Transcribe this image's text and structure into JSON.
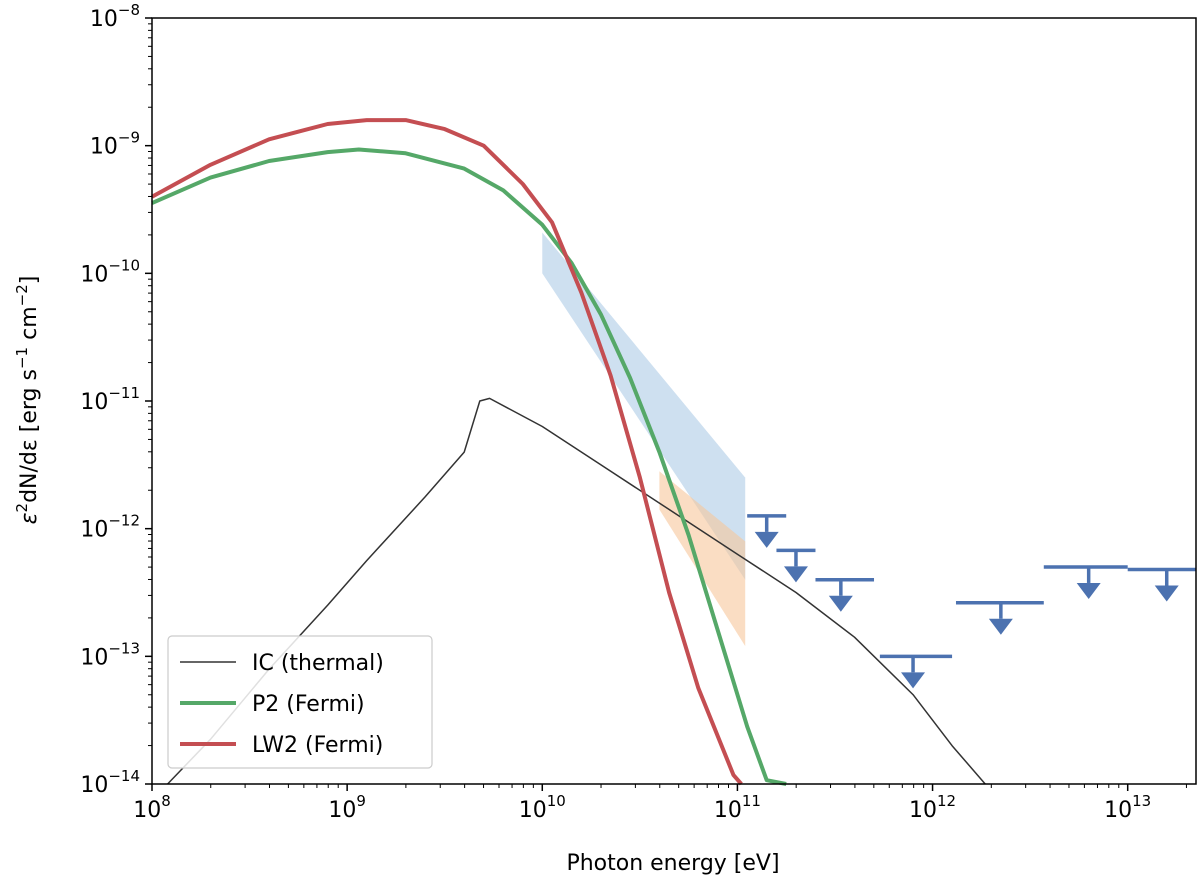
{
  "chart_data": {
    "type": "line",
    "title": "",
    "xlabel": "Photon energy [eV]",
    "ylabel": {
      "prefix": "ε",
      "sup1": "2",
      "mid": "dN/dε [erg s",
      "sup2": "−1",
      "mid2": " cm",
      "sup3": "−2",
      "suffix": "]"
    },
    "xscale": "log",
    "yscale": "log",
    "xlim_log10": [
      8,
      13.35
    ],
    "ylim_log10": [
      -14,
      -8
    ],
    "x_ticks": [
      {
        "base": "10",
        "exp": "8",
        "log10": 8
      },
      {
        "base": "10",
        "exp": "9",
        "log10": 9
      },
      {
        "base": "10",
        "exp": "10",
        "log10": 10
      },
      {
        "base": "10",
        "exp": "11",
        "log10": 11
      },
      {
        "base": "10",
        "exp": "12",
        "log10": 12
      },
      {
        "base": "10",
        "exp": "13",
        "log10": 13
      }
    ],
    "y_ticks": [
      {
        "base": "10",
        "exp": "−14",
        "log10": -14
      },
      {
        "base": "10",
        "exp": "−13",
        "log10": -13
      },
      {
        "base": "10",
        "exp": "−12",
        "log10": -12
      },
      {
        "base": "10",
        "exp": "−11",
        "log10": -11
      },
      {
        "base": "10",
        "exp": "−10",
        "log10": -10
      },
      {
        "base": "10",
        "exp": "−9",
        "log10": -9
      },
      {
        "base": "10",
        "exp": "−8",
        "log10": -8
      }
    ],
    "series": [
      {
        "name": "IC (thermal)",
        "color": "#333333",
        "points_log10": [
          [
            8.08,
            -14.0
          ],
          [
            8.3,
            -13.65
          ],
          [
            8.6,
            -13.1
          ],
          [
            8.9,
            -12.6
          ],
          [
            9.1,
            -12.25
          ],
          [
            9.4,
            -11.75
          ],
          [
            9.6,
            -11.4
          ],
          [
            9.68,
            -11.0
          ],
          [
            9.73,
            -10.98
          ],
          [
            10.0,
            -11.2
          ],
          [
            10.3,
            -11.5
          ],
          [
            10.6,
            -11.8
          ],
          [
            11.0,
            -12.2
          ],
          [
            11.3,
            -12.5
          ],
          [
            11.6,
            -12.85
          ],
          [
            11.9,
            -13.3
          ],
          [
            12.1,
            -13.7
          ],
          [
            12.27,
            -14.0
          ]
        ]
      },
      {
        "name": "P2 (Fermi)",
        "color": "#55a868",
        "points_log10": [
          [
            8.0,
            -9.45
          ],
          [
            8.3,
            -9.25
          ],
          [
            8.6,
            -9.12
          ],
          [
            8.9,
            -9.05
          ],
          [
            9.06,
            -9.03
          ],
          [
            9.3,
            -9.06
          ],
          [
            9.6,
            -9.18
          ],
          [
            9.8,
            -9.35
          ],
          [
            10.0,
            -9.62
          ],
          [
            10.15,
            -9.92
          ],
          [
            10.3,
            -10.32
          ],
          [
            10.45,
            -10.82
          ],
          [
            10.6,
            -11.4
          ],
          [
            10.75,
            -12.05
          ],
          [
            10.9,
            -12.8
          ],
          [
            11.05,
            -13.55
          ],
          [
            11.15,
            -13.97
          ],
          [
            11.25,
            -14.0
          ]
        ]
      },
      {
        "name": "LW2 (Fermi)",
        "color": "#c44e52",
        "points_log10": [
          [
            8.0,
            -9.4
          ],
          [
            8.3,
            -9.15
          ],
          [
            8.6,
            -8.95
          ],
          [
            8.9,
            -8.83
          ],
          [
            9.1,
            -8.8
          ],
          [
            9.3,
            -8.8
          ],
          [
            9.5,
            -8.87
          ],
          [
            9.7,
            -9.0
          ],
          [
            9.9,
            -9.3
          ],
          [
            10.05,
            -9.6
          ],
          [
            10.2,
            -10.15
          ],
          [
            10.35,
            -10.8
          ],
          [
            10.5,
            -11.6
          ],
          [
            10.65,
            -12.5
          ],
          [
            10.8,
            -13.25
          ],
          [
            10.98,
            -13.93
          ],
          [
            11.02,
            -14.0
          ]
        ]
      }
    ],
    "bands": [
      {
        "name": "blue-band",
        "color": "#aecbe6",
        "x_log10": [
          10.0,
          11.04
        ],
        "lower_log10": [
          -10.0,
          -12.4
        ],
        "upper_log10": [
          -9.68,
          -11.6
        ]
      },
      {
        "name": "orange-band",
        "color": "#f7c79b",
        "x_log10": [
          10.6,
          11.04
        ],
        "lower_log10": [
          -11.85,
          -12.92
        ],
        "upper_log10": [
          -11.55,
          -12.1
        ]
      }
    ],
    "upper_limits": {
      "color": "#4c72b0",
      "points_log10": [
        {
          "x": 11.15,
          "x_lo": 11.05,
          "x_hi": 11.25,
          "y": -11.9
        },
        {
          "x": 11.3,
          "x_lo": 11.2,
          "x_hi": 11.4,
          "y": -12.17
        },
        {
          "x": 11.53,
          "x_lo": 11.4,
          "x_hi": 11.7,
          "y": -12.4
        },
        {
          "x": 11.9,
          "x_lo": 11.73,
          "x_hi": 12.1,
          "y": -13.0
        },
        {
          "x": 12.35,
          "x_lo": 12.12,
          "x_hi": 12.57,
          "y": -12.58
        },
        {
          "x": 12.8,
          "x_lo": 12.57,
          "x_hi": 13.0,
          "y": -12.3
        },
        {
          "x": 13.2,
          "x_lo": 13.0,
          "x_hi": 13.35,
          "y": -12.32
        }
      ]
    },
    "legend": {
      "position": "lower-left",
      "entries": [
        "IC (thermal)",
        "P2 (Fermi)",
        "LW2 (Fermi)"
      ]
    }
  }
}
